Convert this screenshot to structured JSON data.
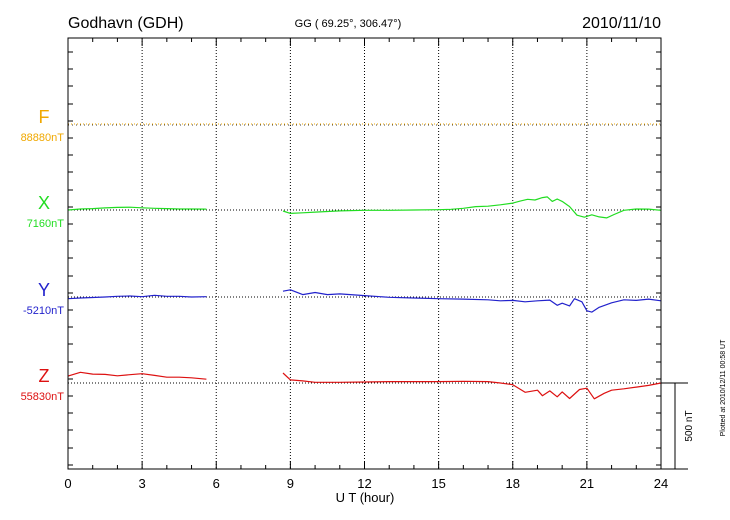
{
  "chart_data": {
    "type": "line",
    "title": "Godhavn (GDH)",
    "subtitle": "GG ( 69.25°, 306.47°)",
    "date": "2010/11/10",
    "xlabel": "U T (hour)",
    "xlim": [
      0,
      24
    ],
    "xticks": [
      0,
      3,
      6,
      9,
      12,
      15,
      18,
      21,
      24
    ],
    "scale_bar": "500 nT",
    "scale_bar_nT": 500,
    "plotted_note": "Plotted at 2010/12/11 00:58 UT",
    "grid": true,
    "series": [
      {
        "name": "F",
        "baseline_label": "88880nT",
        "baseline": 88880,
        "color": "#f0a800",
        "points": []
      },
      {
        "name": "X",
        "baseline_label": "7160nT",
        "baseline": 7160,
        "color": "#22dd22",
        "points": [
          [
            0.0,
            7160
          ],
          [
            0.5,
            7166
          ],
          [
            1.0,
            7168
          ],
          [
            1.5,
            7172
          ],
          [
            2.0,
            7175
          ],
          [
            2.5,
            7176
          ],
          [
            3.0,
            7173
          ],
          [
            3.5,
            7170
          ],
          [
            4.0,
            7168
          ],
          [
            4.5,
            7166
          ],
          [
            5.0,
            7166
          ],
          [
            5.6,
            7165
          ],
          null,
          [
            8.7,
            7154
          ],
          [
            9.0,
            7140
          ],
          [
            9.5,
            7144
          ],
          [
            10.0,
            7148
          ],
          [
            11.0,
            7155
          ],
          [
            12.0,
            7158
          ],
          [
            13.0,
            7158
          ],
          [
            14.0,
            7160
          ],
          [
            15.0,
            7162
          ],
          [
            15.5,
            7164
          ],
          [
            16.0,
            7170
          ],
          [
            16.5,
            7180
          ],
          [
            17.0,
            7182
          ],
          [
            17.5,
            7190
          ],
          [
            18.0,
            7200
          ],
          [
            18.3,
            7212
          ],
          [
            18.6,
            7222
          ],
          [
            18.9,
            7218
          ],
          [
            19.2,
            7232
          ],
          [
            19.4,
            7236
          ],
          [
            19.6,
            7210
          ],
          [
            19.8,
            7224
          ],
          [
            20.0,
            7210
          ],
          [
            20.3,
            7180
          ],
          [
            20.6,
            7130
          ],
          [
            20.9,
            7118
          ],
          [
            21.2,
            7132
          ],
          [
            21.5,
            7120
          ],
          [
            21.8,
            7114
          ],
          [
            22.1,
            7134
          ],
          [
            22.5,
            7158
          ],
          [
            23.0,
            7166
          ],
          [
            23.5,
            7165
          ],
          [
            24.0,
            7158
          ]
        ]
      },
      {
        "name": "Y",
        "baseline_label": "-5210nT",
        "baseline": -5210,
        "color": "#2222cc",
        "points": [
          [
            0.0,
            -5220
          ],
          [
            0.5,
            -5216
          ],
          [
            1.0,
            -5213
          ],
          [
            1.5,
            -5210
          ],
          [
            2.0,
            -5206
          ],
          [
            2.5,
            -5204
          ],
          [
            3.0,
            -5208
          ],
          [
            3.5,
            -5200
          ],
          [
            4.0,
            -5206
          ],
          [
            4.5,
            -5206
          ],
          [
            5.0,
            -5210
          ],
          [
            5.6,
            -5208
          ],
          null,
          [
            8.7,
            -5176
          ],
          [
            9.0,
            -5168
          ],
          [
            9.5,
            -5196
          ],
          [
            10.0,
            -5184
          ],
          [
            10.5,
            -5196
          ],
          [
            11.0,
            -5192
          ],
          [
            12.0,
            -5202
          ],
          [
            13.0,
            -5212
          ],
          [
            14.0,
            -5216
          ],
          [
            15.0,
            -5220
          ],
          [
            16.0,
            -5222
          ],
          [
            17.0,
            -5226
          ],
          [
            17.5,
            -5232
          ],
          [
            18.0,
            -5230
          ],
          [
            18.5,
            -5238
          ],
          [
            19.0,
            -5232
          ],
          [
            19.5,
            -5228
          ],
          [
            19.8,
            -5258
          ],
          [
            20.0,
            -5246
          ],
          [
            20.3,
            -5262
          ],
          [
            20.5,
            -5220
          ],
          [
            20.8,
            -5238
          ],
          [
            21.0,
            -5290
          ],
          [
            21.2,
            -5298
          ],
          [
            21.5,
            -5270
          ],
          [
            22.0,
            -5244
          ],
          [
            22.5,
            -5226
          ],
          [
            23.0,
            -5230
          ],
          [
            23.5,
            -5222
          ],
          [
            24.0,
            -5232
          ]
        ]
      },
      {
        "name": "Z",
        "baseline_label": "55830nT",
        "baseline": 55830,
        "color": "#dd1111",
        "points": [
          [
            0.0,
            55870
          ],
          [
            0.5,
            55892
          ],
          [
            1.0,
            55882
          ],
          [
            1.5,
            55880
          ],
          [
            2.0,
            55872
          ],
          [
            2.5,
            55878
          ],
          [
            3.0,
            55884
          ],
          [
            3.5,
            55874
          ],
          [
            4.0,
            55864
          ],
          [
            4.5,
            55864
          ],
          [
            5.0,
            55860
          ],
          [
            5.6,
            55852
          ],
          null,
          [
            8.7,
            55888
          ],
          [
            9.0,
            55848
          ],
          [
            9.5,
            55842
          ],
          [
            10.0,
            55834
          ],
          [
            11.0,
            55834
          ],
          [
            12.0,
            55836
          ],
          [
            13.0,
            55838
          ],
          [
            14.0,
            55838
          ],
          [
            15.0,
            55838
          ],
          [
            16.0,
            55840
          ],
          [
            17.0,
            55838
          ],
          [
            17.5,
            55830
          ],
          [
            18.0,
            55820
          ],
          [
            18.5,
            55776
          ],
          [
            19.0,
            55788
          ],
          [
            19.2,
            55756
          ],
          [
            19.5,
            55784
          ],
          [
            19.8,
            55750
          ],
          [
            20.0,
            55778
          ],
          [
            20.3,
            55740
          ],
          [
            20.7,
            55792
          ],
          [
            21.0,
            55800
          ],
          [
            21.3,
            55738
          ],
          [
            21.7,
            55770
          ],
          [
            22.0,
            55788
          ],
          [
            22.5,
            55796
          ],
          [
            23.0,
            55806
          ],
          [
            23.5,
            55816
          ],
          [
            24.0,
            55830
          ]
        ]
      }
    ]
  }
}
